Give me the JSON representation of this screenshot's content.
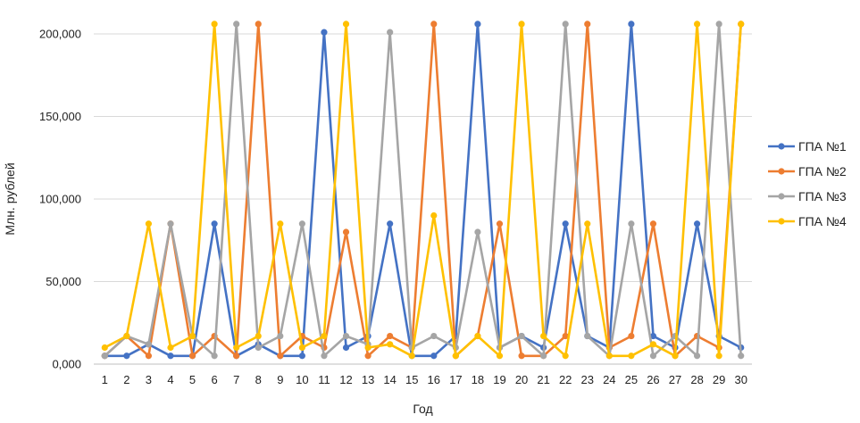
{
  "chart_data": {
    "type": "line",
    "xlabel": "Год",
    "ylabel": "Млн. рублей",
    "x": [
      "1",
      "2",
      "3",
      "4",
      "5",
      "6",
      "7",
      "8",
      "9",
      "10",
      "11",
      "12",
      "13",
      "14",
      "15",
      "16",
      "17",
      "18",
      "19",
      "20",
      "21",
      "22",
      "23",
      "24",
      "25",
      "26",
      "27",
      "28",
      "29",
      "30"
    ],
    "ylim": [
      0,
      200000
    ],
    "yticks": [
      0,
      50000,
      100000,
      150000,
      200000
    ],
    "ytick_labels": [
      "0,000",
      "50,000",
      "100,000",
      "150,000",
      "200,000"
    ],
    "grid": true,
    "legend_position": "right",
    "series": [
      {
        "name": "ГПА №1",
        "color": "#4472C4",
        "values": [
          5000,
          5000,
          12000,
          5000,
          5000,
          85000,
          5000,
          12000,
          5000,
          5000,
          201000,
          10000,
          17000,
          85000,
          5000,
          5000,
          17000,
          206000,
          10000,
          17000,
          10000,
          85000,
          17000,
          10000,
          206000,
          17000,
          10000,
          85000,
          17000,
          10000
        ]
      },
      {
        "name": "ГПА №2",
        "color": "#ED7D31",
        "values": [
          5000,
          17000,
          5000,
          85000,
          5000,
          17000,
          5000,
          206000,
          5000,
          17000,
          10000,
          80000,
          5000,
          17000,
          10000,
          206000,
          5000,
          17000,
          85000,
          5000,
          5000,
          17000,
          206000,
          10000,
          17000,
          85000,
          5000,
          17000,
          10000,
          206000
        ]
      },
      {
        "name": "ГПА №3",
        "color": "#A5A5A5",
        "values": [
          5000,
          17000,
          12000,
          85000,
          17000,
          5000,
          206000,
          10000,
          17000,
          85000,
          5000,
          17000,
          12000,
          201000,
          10000,
          17000,
          10000,
          80000,
          10000,
          17000,
          5000,
          206000,
          17000,
          5000,
          85000,
          5000,
          17000,
          5000,
          206000,
          5000
        ]
      },
      {
        "name": "ГПА №4",
        "color": "#FFC000",
        "values": [
          10000,
          17000,
          85000,
          10000,
          17000,
          206000,
          10000,
          17000,
          85000,
          10000,
          17000,
          206000,
          10000,
          12000,
          5000,
          90000,
          5000,
          17000,
          5000,
          206000,
          17000,
          5000,
          85000,
          5000,
          5000,
          12000,
          5000,
          206000,
          5000,
          206000
        ]
      }
    ]
  }
}
